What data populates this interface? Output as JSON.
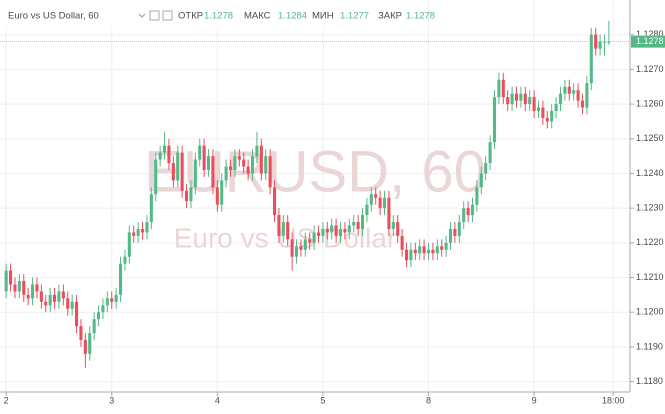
{
  "chart_data": {
    "type": "candlestick",
    "title": "Euro vs US Dollar, 60",
    "watermark": "EURUSD, 60",
    "watermark_subtitle": "Euro vs US Dollar",
    "header": {
      "open_label": "ОТКР",
      "open": "1.1278",
      "high_label": "МАКС",
      "high": "1.1284",
      "low_label": "МИН",
      "low": "1.1277",
      "close_label": "ЗАКР",
      "close": "1.1278"
    },
    "up_color": "#53b987",
    "down_color": "#eb4d5c",
    "last_price": {
      "value": 1.1278,
      "label": "1.1278"
    },
    "grid": true,
    "xlim": [
      -1.4,
      141.8
    ],
    "xticks": [
      {
        "value": 0,
        "label": "2"
      },
      {
        "value": 24,
        "label": "3"
      },
      {
        "value": 48,
        "label": "4"
      },
      {
        "value": 72,
        "label": "5"
      },
      {
        "value": 96,
        "label": "8"
      },
      {
        "value": 120,
        "label": "9"
      },
      {
        "value": 138,
        "label": "18:00"
      }
    ],
    "ylim": [
      1.1177,
      1.129
    ],
    "yticks": [
      {
        "value": 1.118,
        "label": "1.1180"
      },
      {
        "value": 1.119,
        "label": "1.1190"
      },
      {
        "value": 1.12,
        "label": "1.1200"
      },
      {
        "value": 1.121,
        "label": "1.1210"
      },
      {
        "value": 1.122,
        "label": "1.1220"
      },
      {
        "value": 1.123,
        "label": "1.1230"
      },
      {
        "value": 1.124,
        "label": "1.1240"
      },
      {
        "value": 1.125,
        "label": "1.1250"
      },
      {
        "value": 1.126,
        "label": "1.1260"
      },
      {
        "value": 1.127,
        "label": "1.1270"
      },
      {
        "value": 1.128,
        "label": "1.1280"
      }
    ],
    "open": [
      1.1206,
      1.1212,
      1.1208,
      1.1206,
      1.1209,
      1.1205,
      1.1204,
      1.1208,
      1.1206,
      1.1203,
      1.1202,
      1.1205,
      1.1203,
      1.1206,
      1.1204,
      1.1201,
      1.1203,
      1.1196,
      1.1192,
      1.1188,
      1.1194,
      1.1198,
      1.12,
      1.1202,
      1.1204,
      1.1203,
      1.1205,
      1.1214,
      1.1216,
      1.1223,
      1.1222,
      1.1224,
      1.1223,
      1.1226,
      1.1234,
      1.1244,
      1.1246,
      1.1248,
      1.1243,
      1.1238,
      1.1246,
      1.1235,
      1.1232,
      1.1236,
      1.1244,
      1.1248,
      1.1241,
      1.1245,
      1.1236,
      1.1231,
      1.1238,
      1.1242,
      1.1241,
      1.1245,
      1.1244,
      1.1242,
      1.124,
      1.1245,
      1.1248,
      1.124,
      1.1245,
      1.1236,
      1.1228,
      1.1222,
      1.1226,
      1.1221,
      1.1216,
      1.1219,
      1.1218,
      1.1221,
      1.122,
      1.1223,
      1.1222,
      1.1224,
      1.1223,
      1.1225,
      1.1222,
      1.1224,
      1.1223,
      1.1225,
      1.1226,
      1.1224,
      1.1228,
      1.1231,
      1.1234,
      1.1233,
      1.123,
      1.1233,
      1.1224,
      1.1226,
      1.1222,
      1.1218,
      1.1215,
      1.1218,
      1.1217,
      1.1219,
      1.1217,
      1.1218,
      1.1217,
      1.1219,
      1.1218,
      1.122,
      1.1224,
      1.1222,
      1.1226,
      1.123,
      1.1228,
      1.1231,
      1.1236,
      1.124,
      1.1243,
      1.1249,
      1.1262,
      1.1267,
      1.1262,
      1.126,
      1.1263,
      1.1261,
      1.1263,
      1.126,
      1.1262,
      1.1258,
      1.1259,
      1.1256,
      1.1255,
      1.1258,
      1.126,
      1.1263,
      1.1265,
      1.1263,
      1.1264,
      1.1261,
      1.1259,
      1.1266,
      1.128,
      1.1276,
      1.1278,
      1.1278
    ],
    "high": [
      1.1214,
      1.1214,
      1.121,
      1.1211,
      1.1211,
      1.1207,
      1.121,
      1.121,
      1.1208,
      1.1205,
      1.1207,
      1.1207,
      1.1208,
      1.1208,
      1.1206,
      1.1205,
      1.1205,
      1.1198,
      1.1194,
      1.1196,
      1.12,
      1.1202,
      1.1204,
      1.1206,
      1.1206,
      1.1207,
      1.1216,
      1.1218,
      1.1225,
      1.1225,
      1.1226,
      1.1226,
      1.1228,
      1.1236,
      1.1246,
      1.1248,
      1.1252,
      1.125,
      1.1245,
      1.1248,
      1.1248,
      1.1237,
      1.1238,
      1.1246,
      1.125,
      1.125,
      1.1247,
      1.1247,
      1.1238,
      1.124,
      1.1244,
      1.1244,
      1.1247,
      1.1247,
      1.1246,
      1.1244,
      1.1247,
      1.1252,
      1.125,
      1.1247,
      1.1247,
      1.1238,
      1.123,
      1.1228,
      1.1228,
      1.1223,
      1.1221,
      1.1221,
      1.1223,
      1.1223,
      1.1225,
      1.1225,
      1.1226,
      1.1226,
      1.1227,
      1.1227,
      1.1226,
      1.1226,
      1.1227,
      1.1228,
      1.1228,
      1.123,
      1.1233,
      1.1236,
      1.1236,
      1.1235,
      1.1235,
      1.1235,
      1.1228,
      1.1228,
      1.1224,
      1.122,
      1.122,
      1.122,
      1.1221,
      1.1221,
      1.122,
      1.122,
      1.1221,
      1.1221,
      1.1222,
      1.1226,
      1.1226,
      1.1228,
      1.1232,
      1.1232,
      1.1233,
      1.1238,
      1.1242,
      1.1245,
      1.1251,
      1.1264,
      1.1269,
      1.1269,
      1.1264,
      1.1265,
      1.1265,
      1.1265,
      1.1265,
      1.1264,
      1.1264,
      1.1261,
      1.1261,
      1.1258,
      1.126,
      1.1262,
      1.1265,
      1.1267,
      1.1267,
      1.1266,
      1.1266,
      1.1263,
      1.1268,
      1.1282,
      1.1282,
      1.128,
      1.128,
      1.1284
    ],
    "low": [
      1.1204,
      1.1206,
      1.1204,
      1.1204,
      1.1203,
      1.1202,
      1.1202,
      1.1204,
      1.1201,
      1.12,
      1.12,
      1.1201,
      1.1201,
      1.1202,
      1.1199,
      1.1199,
      1.1194,
      1.119,
      1.1184,
      1.1186,
      1.1192,
      1.1196,
      1.1198,
      1.12,
      1.1201,
      1.1201,
      1.1203,
      1.1212,
      1.1214,
      1.122,
      1.122,
      1.1221,
      1.1221,
      1.1224,
      1.1232,
      1.1242,
      1.1244,
      1.1241,
      1.1236,
      1.1236,
      1.1233,
      1.123,
      1.123,
      1.1234,
      1.1242,
      1.1239,
      1.1239,
      1.1234,
      1.1229,
      1.1229,
      1.1236,
      1.1239,
      1.1239,
      1.1242,
      1.124,
      1.1238,
      1.1238,
      1.1243,
      1.1238,
      1.1238,
      1.1234,
      1.1226,
      1.122,
      1.122,
      1.1219,
      1.1212,
      1.1214,
      1.1216,
      1.1216,
      1.1218,
      1.1218,
      1.122,
      1.122,
      1.1221,
      1.1221,
      1.122,
      1.122,
      1.1221,
      1.1221,
      1.1223,
      1.1222,
      1.1222,
      1.1226,
      1.1229,
      1.1231,
      1.1228,
      1.1228,
      1.1222,
      1.1222,
      1.122,
      1.1216,
      1.1213,
      1.1213,
      1.1215,
      1.1215,
      1.1215,
      1.1215,
      1.1215,
      1.1215,
      1.1216,
      1.1216,
      1.1218,
      1.122,
      1.122,
      1.1224,
      1.1226,
      1.1226,
      1.1229,
      1.1234,
      1.1238,
      1.1241,
      1.1247,
      1.126,
      1.126,
      1.1258,
      1.1258,
      1.1259,
      1.1259,
      1.1258,
      1.1258,
      1.1256,
      1.1256,
      1.1254,
      1.1253,
      1.1253,
      1.1256,
      1.1258,
      1.1261,
      1.1261,
      1.1261,
      1.1259,
      1.1257,
      1.1257,
      1.1264,
      1.1274,
      1.1274,
      1.1274,
      1.1277
    ],
    "close": [
      1.1212,
      1.1208,
      1.1206,
      1.1209,
      1.1205,
      1.1204,
      1.1208,
      1.1206,
      1.1203,
      1.1202,
      1.1205,
      1.1203,
      1.1206,
      1.1204,
      1.1201,
      1.1203,
      1.1196,
      1.1192,
      1.1188,
      1.1194,
      1.1198,
      1.12,
      1.1202,
      1.1204,
      1.1203,
      1.1205,
      1.1214,
      1.1216,
      1.1223,
      1.1222,
      1.1224,
      1.1223,
      1.1226,
      1.1234,
      1.1244,
      1.1246,
      1.1248,
      1.1243,
      1.1238,
      1.1246,
      1.1235,
      1.1232,
      1.1236,
      1.1244,
      1.1248,
      1.1241,
      1.1245,
      1.1236,
      1.1231,
      1.1238,
      1.1242,
      1.1241,
      1.1245,
      1.1244,
      1.1242,
      1.124,
      1.1245,
      1.1248,
      1.124,
      1.1245,
      1.1236,
      1.1228,
      1.1222,
      1.1226,
      1.1221,
      1.1216,
      1.1219,
      1.1218,
      1.1221,
      1.122,
      1.1223,
      1.1222,
      1.1224,
      1.1223,
      1.1225,
      1.1222,
      1.1224,
      1.1223,
      1.1225,
      1.1226,
      1.1224,
      1.1228,
      1.1231,
      1.1234,
      1.1233,
      1.123,
      1.1233,
      1.1224,
      1.1226,
      1.1222,
      1.1218,
      1.1215,
      1.1218,
      1.1217,
      1.1219,
      1.1217,
      1.1218,
      1.1217,
      1.1219,
      1.1218,
      1.122,
      1.1224,
      1.1222,
      1.1226,
      1.123,
      1.1228,
      1.1231,
      1.1236,
      1.124,
      1.1243,
      1.1249,
      1.1262,
      1.1267,
      1.1262,
      1.126,
      1.1263,
      1.1261,
      1.1263,
      1.126,
      1.1262,
      1.1258,
      1.1259,
      1.1256,
      1.1255,
      1.1258,
      1.126,
      1.1263,
      1.1265,
      1.1263,
      1.1264,
      1.1261,
      1.1259,
      1.1266,
      1.128,
      1.1276,
      1.1278,
      1.1278,
      1.1278
    ]
  }
}
